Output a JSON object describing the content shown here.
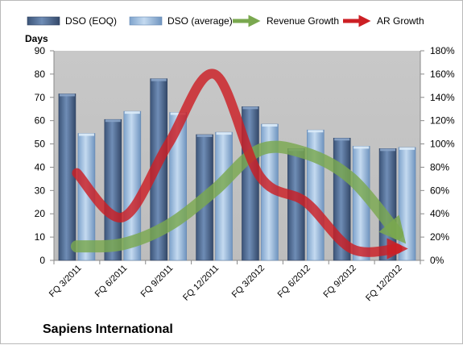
{
  "chart_data": {
    "type": "bar",
    "footer": "Sapiens International",
    "y_left_label": "Days",
    "y_left_range": [
      0,
      90
    ],
    "y_left_ticks": [
      "0",
      "10",
      "20",
      "30",
      "40",
      "50",
      "60",
      "70",
      "80",
      "90"
    ],
    "y_right_range": [
      0,
      180
    ],
    "y_right_ticks": [
      "0%",
      "20%",
      "40%",
      "60%",
      "80%",
      "100%",
      "120%",
      "140%",
      "160%",
      "180%"
    ],
    "categories": [
      "FQ 3/2011",
      "FQ 6/2011",
      "FQ 9/2011",
      "FQ 12/2011",
      "FQ 3/2012",
      "FQ 6/2012",
      "FQ 9/2012",
      "FQ 12/2012"
    ],
    "bar_series": [
      {
        "name": "DSO (EOQ)",
        "values": [
          71.5,
          60.5,
          78,
          54,
          66,
          48,
          52.5,
          48
        ]
      },
      {
        "name": "DSO (average)",
        "values": [
          54.5,
          64,
          63.5,
          55,
          58.5,
          56,
          49,
          48.5
        ]
      }
    ],
    "trend_series": [
      {
        "name": "Revenue Growth",
        "axis": "right",
        "values": [
          12,
          14,
          30,
          60,
          95,
          92,
          70,
          23
        ]
      },
      {
        "name": "AR Growth",
        "axis": "right",
        "values": [
          75,
          37,
          100,
          160,
          72,
          50,
          10,
          10
        ]
      }
    ],
    "legend_position": "top",
    "gridlines": false,
    "colors": {
      "dso_eoq": "#4a6590",
      "dso_average": "#8fb3da",
      "revenue_growth": "#7aa84f",
      "ar_growth": "#cc1f24",
      "plot_background": "#c0c0c0"
    }
  }
}
